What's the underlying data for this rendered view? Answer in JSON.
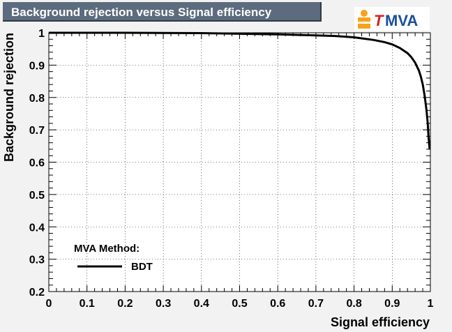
{
  "chart_data": {
    "type": "line",
    "title": "Background rejection versus Signal efficiency",
    "xlabel": "Signal efficiency",
    "ylabel": "Background rejection",
    "xlim": [
      0,
      1
    ],
    "ylim": [
      0.2,
      1
    ],
    "x_ticks": [
      "0",
      "0.1",
      "0.2",
      "0.3",
      "0.4",
      "0.5",
      "0.6",
      "0.7",
      "0.8",
      "0.9",
      "1"
    ],
    "y_ticks": [
      "0.2",
      "0.3",
      "0.4",
      "0.5",
      "0.6",
      "0.7",
      "0.8",
      "0.9",
      "1"
    ],
    "grid": true,
    "legend": {
      "header": "MVA Method:",
      "placement": "bottom-left"
    },
    "series": [
      {
        "name": "BDT",
        "color": "#000000",
        "x": [
          0.0,
          0.2,
          0.4,
          0.5,
          0.6,
          0.7,
          0.75,
          0.8,
          0.85,
          0.88,
          0.9,
          0.92,
          0.94,
          0.95,
          0.96,
          0.97,
          0.975,
          0.98,
          0.985,
          0.99,
          0.993,
          0.995,
          0.998
        ],
        "y": [
          1.0,
          1.0,
          0.999,
          0.997,
          0.995,
          0.992,
          0.99,
          0.986,
          0.978,
          0.971,
          0.964,
          0.953,
          0.937,
          0.925,
          0.908,
          0.883,
          0.865,
          0.84,
          0.805,
          0.76,
          0.72,
          0.68,
          0.64
        ]
      }
    ]
  },
  "logo": {
    "text": "TMVA"
  }
}
